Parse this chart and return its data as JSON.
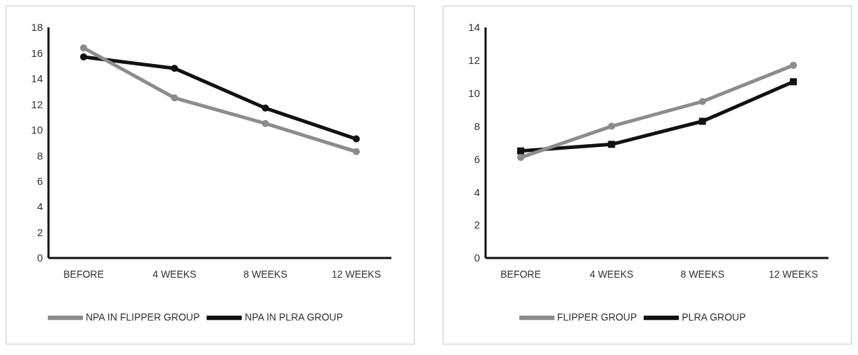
{
  "chart_data": [
    {
      "type": "line",
      "categories": [
        "BEFORE",
        "4 WEEKS",
        "8 WEEKS",
        "12 WEEKS"
      ],
      "ylim": [
        0,
        18
      ],
      "yticks": [
        0,
        2,
        4,
        6,
        8,
        10,
        12,
        14,
        16,
        18
      ],
      "grid": false,
      "legend": "bottom",
      "series": [
        {
          "name": "NPA IN PLRA GROUP",
          "color": "#111111",
          "marker": "circle",
          "values": [
            15.7,
            14.8,
            11.7,
            9.3
          ]
        },
        {
          "name": "NPA IN FLIPPER GROUP",
          "color": "#8c8c8c",
          "marker": "circle",
          "values": [
            16.4,
            12.5,
            10.5,
            8.3
          ]
        }
      ]
    },
    {
      "type": "line",
      "categories": [
        "BEFORE",
        "4 WEEKS",
        "8 WEEKS",
        "12 WEEKS"
      ],
      "ylim": [
        0,
        14
      ],
      "yticks": [
        0,
        2,
        4,
        6,
        8,
        10,
        12,
        14
      ],
      "grid": false,
      "legend": "bottom",
      "series": [
        {
          "name": "PLRA GROUP",
          "color": "#111111",
          "marker": "square",
          "values": [
            6.5,
            6.9,
            8.3,
            10.7
          ]
        },
        {
          "name": "FLIPPER GROUP",
          "color": "#8c8c8c",
          "marker": "circle",
          "values": [
            6.1,
            8.0,
            9.5,
            11.7
          ]
        }
      ]
    }
  ]
}
